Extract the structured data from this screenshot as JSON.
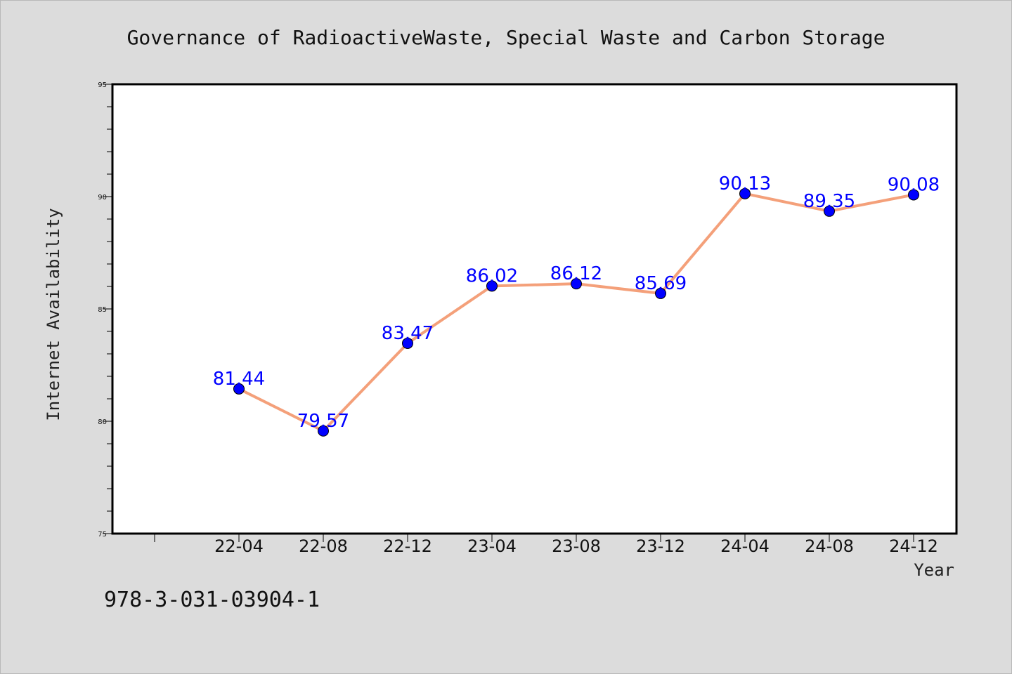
{
  "chart_data": {
    "type": "line",
    "title": "Governance of RadioactiveWaste, Special Waste and Carbon Storage",
    "xlabel": "Year",
    "ylabel": "Internet Availability",
    "categories": [
      "22-04",
      "22-08",
      "22-12",
      "23-04",
      "23-08",
      "23-12",
      "24-04",
      "24-08",
      "24-12"
    ],
    "series": [
      {
        "values": [
          81.44,
          79.57,
          83.47,
          86.02,
          86.12,
          85.69,
          90.13,
          89.35,
          90.08
        ],
        "labels": [
          "81.44",
          "79.57",
          "83.47",
          "86.02",
          "86.12",
          "85.69",
          "90.13",
          "89.35",
          "90.08"
        ],
        "line_color": "#f4a07a",
        "marker_color": "#0000ff"
      }
    ],
    "ylim": [
      75,
      95
    ],
    "yticks": [
      75,
      80,
      85,
      90,
      95
    ],
    "grid": false,
    "legend": "none"
  },
  "footer": {
    "isbn": "978-3-031-03904-1"
  }
}
